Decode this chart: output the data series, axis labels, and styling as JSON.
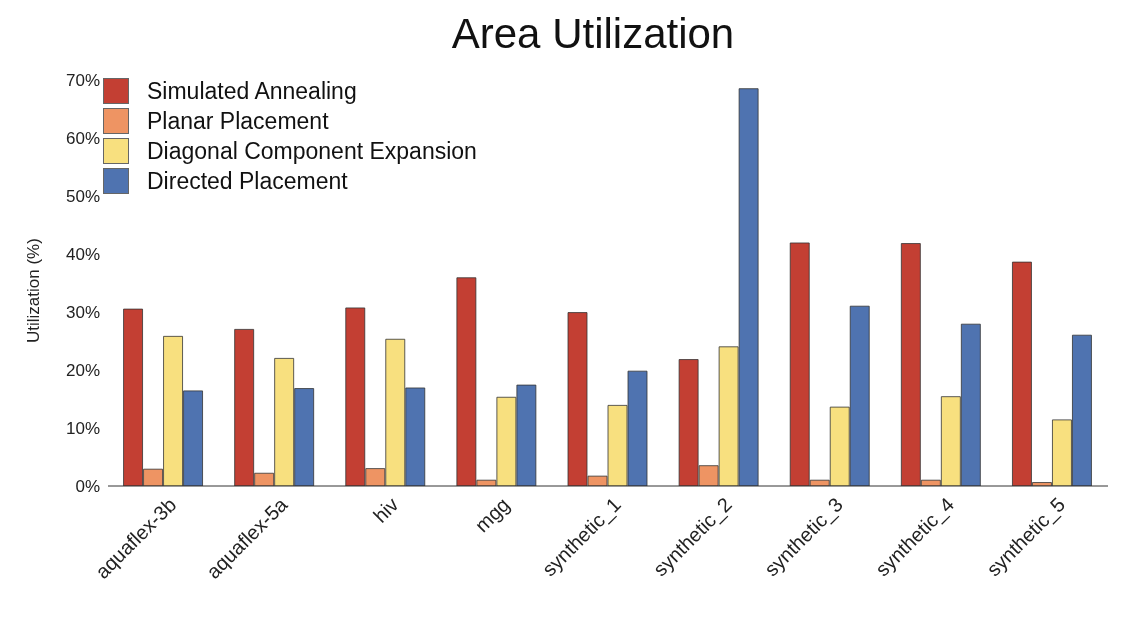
{
  "chart_data": {
    "type": "bar",
    "title": "Area Utilization",
    "ylabel": "Utilization (%)",
    "categories": [
      "aquaflex-3b",
      "aquaflex-5a",
      "hiv",
      "mgg",
      "synthetic_1",
      "synthetic_2",
      "synthetic_3",
      "synthetic_4",
      "synthetic_5"
    ],
    "series": [
      {
        "name": "Simulated Annealing",
        "color": "#c33f33",
        "values": [
          30.5,
          27.0,
          30.7,
          35.9,
          29.9,
          21.8,
          41.9,
          41.8,
          38.6
        ]
      },
      {
        "name": "Planar Placement",
        "color": "#ee9463",
        "values": [
          2.9,
          2.2,
          3.0,
          1.0,
          1.7,
          3.5,
          1.0,
          1.0,
          0.6
        ]
      },
      {
        "name": "Diagonal Component Expansion",
        "color": "#f8e07f",
        "values": [
          25.8,
          22.0,
          25.3,
          15.3,
          13.9,
          24.0,
          13.6,
          15.4,
          11.4
        ]
      },
      {
        "name": "Directed Placement",
        "color": "#4f73b0",
        "values": [
          16.4,
          16.8,
          16.9,
          17.4,
          19.8,
          68.5,
          31.0,
          27.9,
          26.0
        ]
      }
    ],
    "ylim": [
      0,
      70
    ],
    "yticks": [
      {
        "value": 0,
        "label": "0%"
      },
      {
        "value": 10,
        "label": "10%"
      },
      {
        "value": 20,
        "label": "20%"
      },
      {
        "value": 30,
        "label": "30%"
      },
      {
        "value": 40,
        "label": "40%"
      },
      {
        "value": 50,
        "label": "50%"
      },
      {
        "value": 60,
        "label": "60%"
      },
      {
        "value": 70,
        "label": "70%"
      }
    ],
    "grid": false,
    "legend": "top left"
  }
}
